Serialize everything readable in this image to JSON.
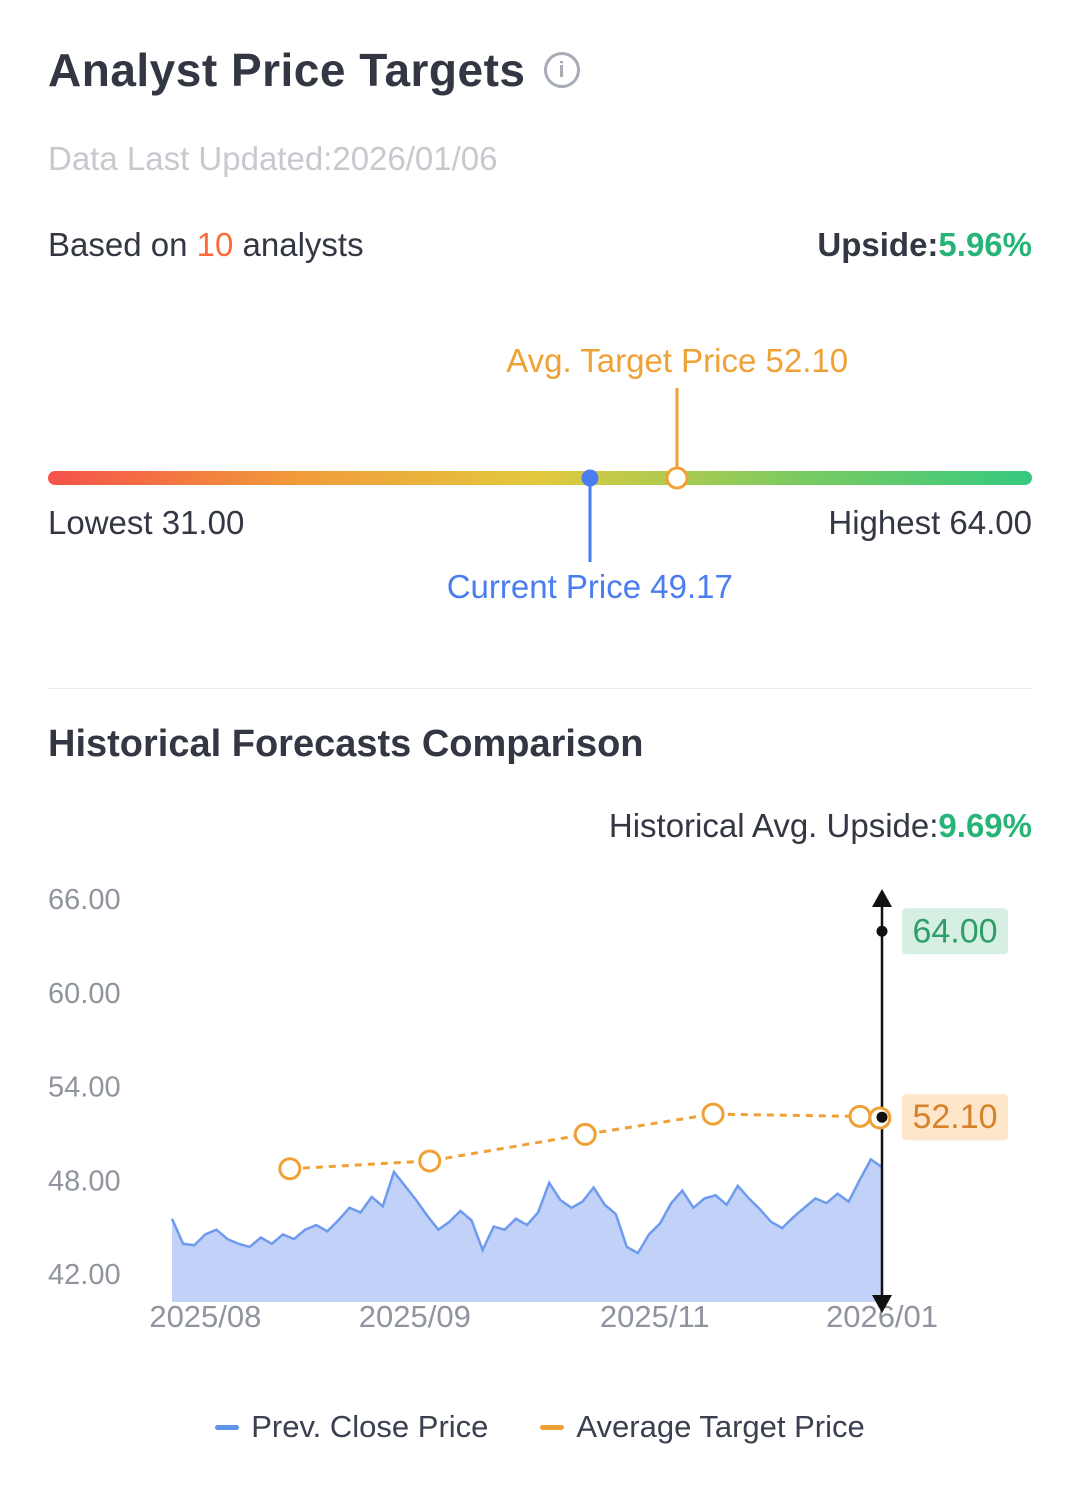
{
  "colors": {
    "text_dark": "#333743",
    "text_gray": "#C6C9CE",
    "axis_gray": "#8F949E",
    "accent_red": "#FF6A3D",
    "accent_green": "#27B577",
    "accent_blue": "#4A7DF0",
    "accent_orange": "#F0A135",
    "divider": "#E9EBEE"
  },
  "icons": {
    "info": "i"
  },
  "header": {
    "title": "Analyst Price Targets",
    "last_updated": "Data Last Updated:2026/01/06",
    "based_on_prefix": "Based on ",
    "analyst_count": "10",
    "based_on_suffix": " analysts",
    "upside_label": "Upside:",
    "upside_value": "5.96%"
  },
  "target_bar": {
    "lowest": 31.0,
    "highest": 64.0,
    "current": 49.17,
    "avg": 52.1,
    "avg_label": "Avg. Target Price 52.10",
    "current_label": "Current Price 49.17",
    "lowest_label": "Lowest 31.00",
    "highest_label": "Highest 64.00",
    "gradient": [
      "#F4524A",
      "#F29A3A",
      "#E2C93E",
      "#7FCB5F",
      "#35C97F"
    ]
  },
  "history": {
    "title": "Historical Forecasts Comparison",
    "avg_upside_label": "Historical Avg. Upside:",
    "avg_upside_value": "9.69%"
  },
  "chart_data": {
    "type": "area",
    "title": "Historical Forecasts Comparison",
    "ylim": [
      42,
      66
    ],
    "grid": false,
    "legend_position": "bottom",
    "y_ticks": [
      {
        "value": 66,
        "label": "66.00"
      },
      {
        "value": 60,
        "label": "60.00"
      },
      {
        "value": 54,
        "label": "54.00"
      },
      {
        "value": 48,
        "label": "48.00"
      },
      {
        "value": 42,
        "label": "42.00"
      }
    ],
    "x_ticks": [
      {
        "x": 0.047,
        "label": "2025/08"
      },
      {
        "x": 0.342,
        "label": "2025/09"
      },
      {
        "x": 0.68,
        "label": "2025/11"
      },
      {
        "x": 1.0,
        "label": "2026/01"
      }
    ],
    "series": [
      {
        "name": "Prev. Close Price",
        "type": "area",
        "line_color": "#6F9BEF",
        "fill_color": "#BFCFF7",
        "values": [
          45.6,
          44.0,
          43.9,
          44.6,
          44.9,
          44.3,
          44.0,
          43.8,
          44.4,
          44.0,
          44.6,
          44.3,
          44.9,
          45.2,
          44.8,
          45.5,
          46.3,
          46.0,
          47.0,
          46.4,
          48.6,
          47.7,
          46.8,
          45.8,
          44.9,
          45.4,
          46.1,
          45.5,
          43.6,
          45.1,
          44.9,
          45.6,
          45.2,
          46.0,
          47.9,
          46.8,
          46.3,
          46.7,
          47.6,
          46.5,
          45.9,
          43.8,
          43.4,
          44.6,
          45.3,
          46.6,
          47.4,
          46.3,
          46.9,
          47.1,
          46.5,
          47.7,
          46.9,
          46.2,
          45.4,
          45.0,
          45.7,
          46.3,
          46.9,
          46.6,
          47.2,
          46.7,
          48.1,
          49.4,
          48.9
        ]
      },
      {
        "name": "Average Target Price",
        "type": "dashed_line",
        "color": "#F0A135",
        "points": [
          [
            0.166,
            48.8
          ],
          [
            0.363,
            49.3
          ],
          [
            0.582,
            51.0
          ],
          [
            0.762,
            52.3
          ],
          [
            0.969,
            52.15
          ],
          [
            0.997,
            52.05
          ]
        ]
      }
    ],
    "range_marker": {
      "x": 1.0,
      "line_color": "#111111",
      "high": {
        "value": 64.0,
        "label": "64.00",
        "bg": "#D5F0E2",
        "color": "#2F9E68"
      },
      "avg": {
        "value": 52.1,
        "label": "52.10",
        "bg": "#FDE6C9",
        "color": "#D6822B"
      }
    }
  },
  "legend": {
    "items": [
      {
        "label": "Prev. Close Price",
        "color": "#5F93EE"
      },
      {
        "label": "Average Target Price",
        "color": "#F0A135"
      }
    ]
  }
}
